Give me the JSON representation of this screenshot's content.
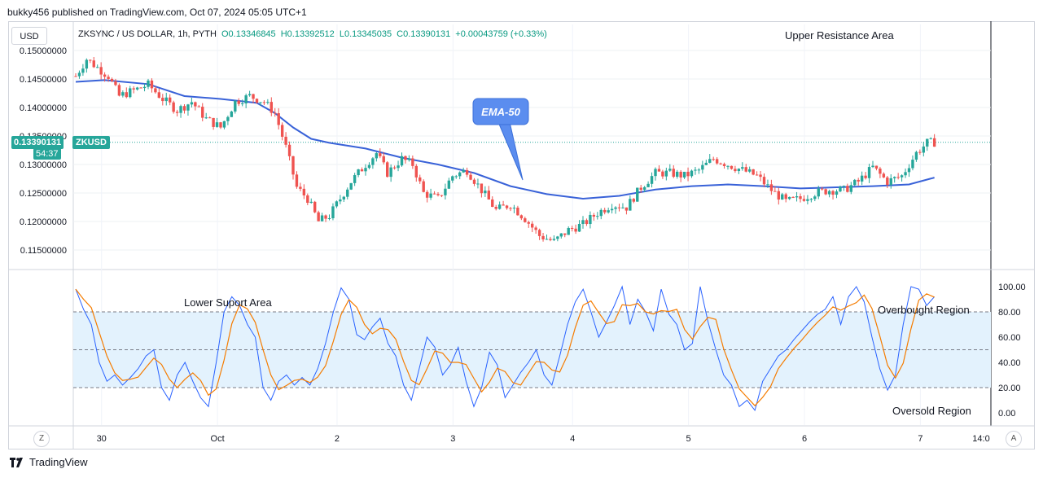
{
  "header": {
    "published_line": "bukky456 published on TradingView.com, Oct 07, 2024 05:05 UTC+1"
  },
  "toolbar": {
    "currency_label": "USD",
    "z_label": "Z",
    "a_label": "A"
  },
  "legend": {
    "symbol": "ZKSYNC / US DOLLAR, 1h, PYTH",
    "open": "O0.13346845",
    "high": "H0.13392512",
    "low": "L0.13345035",
    "close": "C0.13390131",
    "change": "+0.00043759 (+0.33%)"
  },
  "current_price": {
    "value": "0.13390131",
    "countdown": "54:37",
    "symbol_tag": "ZKUSD"
  },
  "annotations": {
    "upper_resistance": "Upper Resistance Area",
    "lower_support": "Lower Suport Area",
    "overbought": "Overbought Region",
    "oversold": "Oversold Region",
    "ema_callout": "EMA-50"
  },
  "footer": {
    "brand": "TradingView"
  },
  "colors": {
    "up": "#26a69a",
    "down": "#ef5350",
    "ema": "#3962d8",
    "stoch_k": "#2962ff",
    "stoch_d": "#f57c00",
    "stoch_band": "#e3f2fd",
    "callout": "#5b8def"
  },
  "chart_data": [
    {
      "type": "candlestick",
      "price_ticks": [
        "0.15000000",
        "0.14500000",
        "0.14000000",
        "0.13500000",
        "0.13000000",
        "0.12500000",
        "0.12000000",
        "0.11500000"
      ],
      "ylim": [
        0.111,
        0.1515
      ],
      "x_ticks": [
        "30",
        "Oct",
        "2",
        "3",
        "4",
        "5",
        "6",
        "7",
        "14:0"
      ],
      "series_name": "ZKSYNC / US DOLLAR",
      "ema_label": "EMA-50",
      "ema": [
        [
          0,
          0.1445
        ],
        [
          8,
          0.1448
        ],
        [
          20,
          0.1441
        ],
        [
          30,
          0.142
        ],
        [
          40,
          0.1415
        ],
        [
          50,
          0.1408
        ],
        [
          55,
          0.139
        ],
        [
          60,
          0.1365
        ],
        [
          65,
          0.1345
        ],
        [
          70,
          0.1338
        ],
        [
          80,
          0.1328
        ],
        [
          90,
          0.1312
        ],
        [
          100,
          0.13
        ],
        [
          110,
          0.1285
        ],
        [
          120,
          0.1262
        ],
        [
          130,
          0.1248
        ],
        [
          140,
          0.124
        ],
        [
          150,
          0.1245
        ],
        [
          160,
          0.1256
        ],
        [
          170,
          0.1262
        ],
        [
          180,
          0.1265
        ],
        [
          190,
          0.1262
        ],
        [
          200,
          0.1258
        ],
        [
          210,
          0.126
        ],
        [
          220,
          0.1262
        ],
        [
          230,
          0.1265
        ],
        [
          237,
          0.1277
        ]
      ],
      "keypoints": [
        [
          0,
          0.1455
        ],
        [
          3,
          0.1485
        ],
        [
          6,
          0.147
        ],
        [
          9,
          0.1455
        ],
        [
          12,
          0.142
        ],
        [
          16,
          0.143
        ],
        [
          20,
          0.144
        ],
        [
          24,
          0.1415
        ],
        [
          28,
          0.1395
        ],
        [
          32,
          0.141
        ],
        [
          36,
          0.138
        ],
        [
          40,
          0.1365
        ],
        [
          44,
          0.141
        ],
        [
          48,
          0.142
        ],
        [
          52,
          0.141
        ],
        [
          55,
          0.139
        ],
        [
          58,
          0.133
        ],
        [
          61,
          0.126
        ],
        [
          64,
          0.124
        ],
        [
          67,
          0.12
        ],
        [
          70,
          0.121
        ],
        [
          73,
          0.124
        ],
        [
          76,
          0.127
        ],
        [
          80,
          0.13
        ],
        [
          83,
          0.132
        ],
        [
          86,
          0.1285
        ],
        [
          90,
          0.131
        ],
        [
          93,
          0.13
        ],
        [
          96,
          0.125
        ],
        [
          100,
          0.124
        ],
        [
          104,
          0.128
        ],
        [
          108,
          0.129
        ],
        [
          112,
          0.1255
        ],
        [
          116,
          0.122
        ],
        [
          120,
          0.123
        ],
        [
          124,
          0.1205
        ],
        [
          128,
          0.1175
        ],
        [
          132,
          0.1165
        ],
        [
          136,
          0.1185
        ],
        [
          140,
          0.1195
        ],
        [
          144,
          0.1215
        ],
        [
          148,
          0.123
        ],
        [
          152,
          0.1225
        ],
        [
          156,
          0.126
        ],
        [
          160,
          0.1285
        ],
        [
          164,
          0.1285
        ],
        [
          168,
          0.128
        ],
        [
          172,
          0.129
        ],
        [
          176,
          0.131
        ],
        [
          180,
          0.13
        ],
        [
          184,
          0.129
        ],
        [
          188,
          0.128
        ],
        [
          192,
          0.1255
        ],
        [
          196,
          0.1235
        ],
        [
          200,
          0.124
        ],
        [
          204,
          0.125
        ],
        [
          208,
          0.1255
        ],
        [
          212,
          0.1255
        ],
        [
          216,
          0.127
        ],
        [
          220,
          0.1295
        ],
        [
          224,
          0.127
        ],
        [
          228,
          0.128
        ],
        [
          232,
          0.132
        ],
        [
          235,
          0.1338
        ],
        [
          237,
          0.1339
        ]
      ]
    },
    {
      "type": "stochastic",
      "yticks": [
        "100.00",
        "80.00",
        "60.00",
        "40.00",
        "20.00",
        "0.00"
      ],
      "ylim": [
        -7,
        106
      ],
      "levels": [
        80,
        50,
        20
      ],
      "k": [
        98,
        82,
        70,
        40,
        25,
        30,
        22,
        28,
        35,
        45,
        50,
        20,
        10,
        30,
        40,
        25,
        12,
        5,
        40,
        80,
        92,
        85,
        70,
        60,
        20,
        10,
        25,
        30,
        22,
        28,
        22,
        35,
        55,
        80,
        99,
        90,
        62,
        58,
        68,
        75,
        55,
        45,
        22,
        10,
        35,
        60,
        52,
        30,
        38,
        52,
        25,
        5,
        20,
        48,
        38,
        12,
        22,
        32,
        40,
        50,
        30,
        22,
        45,
        70,
        88,
        98,
        80,
        60,
        72,
        85,
        100,
        70,
        90,
        80,
        65,
        98,
        78,
        70,
        50,
        55,
        100,
        72,
        50,
        30,
        22,
        5,
        10,
        2,
        25,
        35,
        45,
        50,
        58,
        65,
        72,
        78,
        82,
        92,
        70,
        92,
        100,
        88,
        60,
        35,
        18,
        30,
        70,
        100,
        98,
        85,
        92
      ]
    }
  ]
}
